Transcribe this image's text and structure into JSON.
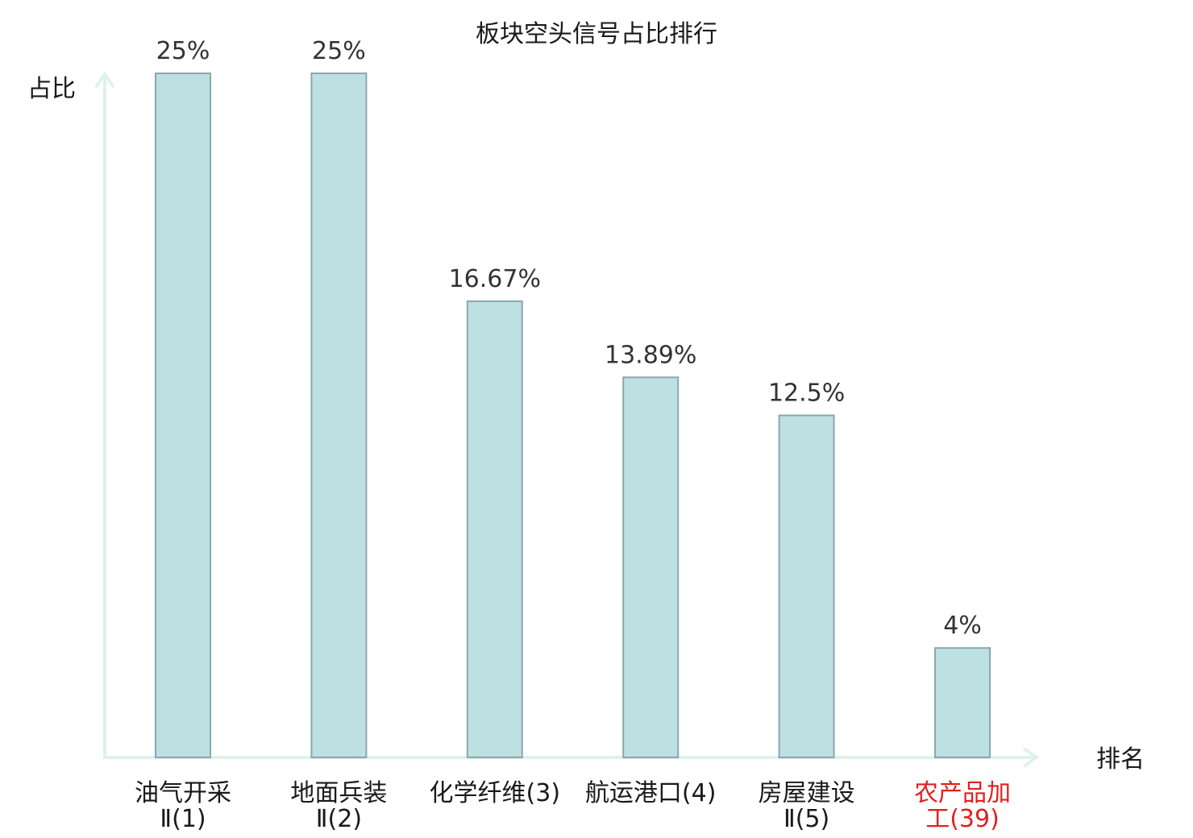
{
  "chart_data": {
    "type": "bar",
    "title": "板块空头信号占比排行",
    "xlabel": "排名",
    "ylabel": "占比",
    "categories": [
      [
        "油气开采",
        "Ⅱ(1)"
      ],
      [
        "地面兵装",
        "Ⅱ(2)"
      ],
      [
        "化学纤维(3)"
      ],
      [
        "航运港口(4)"
      ],
      [
        "房屋建设",
        "Ⅱ(5)"
      ],
      [
        "农产品加",
        "工(39)"
      ]
    ],
    "values": [
      25,
      25,
      16.67,
      13.89,
      12.5,
      4
    ],
    "value_labels": [
      "25%",
      "25%",
      "16.67%",
      "13.89%",
      "12.5%",
      "4%"
    ],
    "highlight_index": 5,
    "ylim": [
      0,
      25
    ],
    "grid": false,
    "legend": "none"
  },
  "colors": {
    "bar_fill": "#bde0e2",
    "bar_stroke": "#8aa8ac",
    "axis": "#dff1ee",
    "text": "#1a1a1a",
    "value_text": "#333333",
    "highlight_text": "#e02020"
  }
}
